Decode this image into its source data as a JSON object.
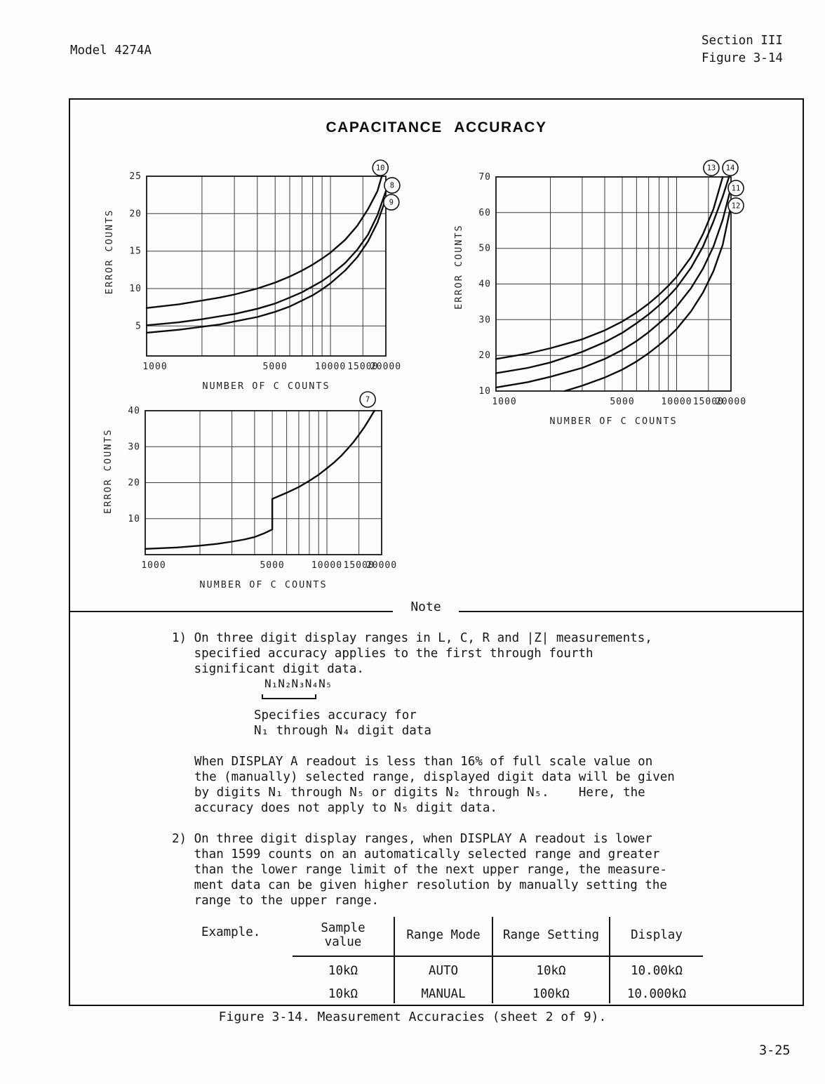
{
  "page": {
    "model": "Model 4274A",
    "section": "Section III",
    "figure_ref": "Figure 3-14",
    "title": "CAPACITANCE ACCURACY",
    "note_heading": "Note",
    "caption": "Figure 3-14.  Measurement Accuracies (sheet 2 of 9).",
    "page_number": "3-25"
  },
  "chart_data": [
    {
      "type": "line",
      "xscale": "log",
      "xlabel": "NUMBER OF C COUNTS",
      "ylabel": "ERROR COUNTS",
      "xlim": [
        1000,
        20000
      ],
      "ylim": [
        1,
        25
      ],
      "xticks": [
        1000,
        5000,
        10000,
        15000,
        20000
      ],
      "yticks": [
        5,
        10,
        15,
        20,
        25
      ],
      "xgrid": [
        1000,
        2000,
        3000,
        4000,
        5000,
        6000,
        7000,
        8000,
        9000,
        10000,
        15000,
        20000
      ],
      "grid": true,
      "series": [
        {
          "name": "10",
          "points": [
            [
              1000,
              7.4
            ],
            [
              1500,
              7.9
            ],
            [
              2000,
              8.4
            ],
            [
              2500,
              8.8
            ],
            [
              3000,
              9.2
            ],
            [
              4000,
              10.0
            ],
            [
              5000,
              10.8
            ],
            [
              6000,
              11.6
            ],
            [
              7000,
              12.4
            ],
            [
              8000,
              13.2
            ],
            [
              9000,
              14.0
            ],
            [
              10000,
              14.8
            ],
            [
              12000,
              16.5
            ],
            [
              14000,
              18.4
            ],
            [
              16000,
              20.6
            ],
            [
              18000,
              23.0
            ],
            [
              19000,
              25.0
            ]
          ]
        },
        {
          "name": "8",
          "points": [
            [
              1000,
              5.1
            ],
            [
              1500,
              5.5
            ],
            [
              2000,
              5.9
            ],
            [
              2500,
              6.3
            ],
            [
              3000,
              6.6
            ],
            [
              4000,
              7.3
            ],
            [
              5000,
              8.0
            ],
            [
              6000,
              8.8
            ],
            [
              7000,
              9.5
            ],
            [
              8000,
              10.3
            ],
            [
              9000,
              11.0
            ],
            [
              10000,
              11.8
            ],
            [
              12000,
              13.4
            ],
            [
              14000,
              15.2
            ],
            [
              16000,
              17.2
            ],
            [
              18000,
              19.8
            ],
            [
              20000,
              23.0
            ]
          ]
        },
        {
          "name": "9",
          "points": [
            [
              1000,
              4.1
            ],
            [
              1500,
              4.5
            ],
            [
              2000,
              4.9
            ],
            [
              2500,
              5.2
            ],
            [
              3000,
              5.6
            ],
            [
              4000,
              6.2
            ],
            [
              5000,
              6.9
            ],
            [
              6000,
              7.6
            ],
            [
              7000,
              8.4
            ],
            [
              8000,
              9.1
            ],
            [
              9000,
              9.9
            ],
            [
              10000,
              10.7
            ],
            [
              12000,
              12.4
            ],
            [
              14000,
              14.2
            ],
            [
              16000,
              16.3
            ],
            [
              18000,
              18.8
            ],
            [
              20000,
              22.0
            ]
          ]
        }
      ],
      "curve_labels": [
        {
          "text": "10",
          "fx": 0.977,
          "fy": -0.047
        },
        {
          "text": "8",
          "fx": 1.026,
          "fy": 0.051
        },
        {
          "text": "9",
          "fx": 1.023,
          "fy": 0.145
        }
      ]
    },
    {
      "type": "line",
      "xscale": "log",
      "xlabel": "NUMBER OF C COUNTS",
      "ylabel": "ERROR COUNTS",
      "xlim": [
        1000,
        20000
      ],
      "ylim": [
        10,
        70
      ],
      "xticks": [
        1000,
        5000,
        10000,
        15000,
        20000
      ],
      "yticks": [
        10,
        20,
        30,
        40,
        50,
        60,
        70
      ],
      "xgrid": [
        1000,
        2000,
        3000,
        4000,
        5000,
        6000,
        7000,
        8000,
        9000,
        10000,
        15000,
        20000
      ],
      "grid": true,
      "series": [
        {
          "name": "13",
          "points": [
            [
              1000,
              19.0
            ],
            [
              1500,
              20.5
            ],
            [
              2000,
              22.0
            ],
            [
              3000,
              24.5
            ],
            [
              4000,
              27.0
            ],
            [
              5000,
              29.5
            ],
            [
              6000,
              32.0
            ],
            [
              7000,
              34.5
            ],
            [
              8000,
              37.0
            ],
            [
              9000,
              39.5
            ],
            [
              10000,
              42.0
            ],
            [
              12000,
              47.5
            ],
            [
              14000,
              54.0
            ],
            [
              16000,
              61.0
            ],
            [
              18000,
              70.0
            ]
          ]
        },
        {
          "name": "14",
          "points": [
            [
              1000,
              15.0
            ],
            [
              1500,
              16.5
            ],
            [
              2000,
              18.0
            ],
            [
              3000,
              21.0
            ],
            [
              4000,
              23.7
            ],
            [
              5000,
              26.3
            ],
            [
              6000,
              29.0
            ],
            [
              7000,
              31.5
            ],
            [
              8000,
              34.0
            ],
            [
              9000,
              36.5
            ],
            [
              10000,
              39.0
            ],
            [
              12000,
              44.5
            ],
            [
              14000,
              50.5
            ],
            [
              16000,
              57.5
            ],
            [
              18000,
              64.5
            ],
            [
              19500,
              70.0
            ]
          ]
        },
        {
          "name": "11",
          "points": [
            [
              1000,
              11.0
            ],
            [
              1500,
              12.5
            ],
            [
              2000,
              14.0
            ],
            [
              3000,
              16.5
            ],
            [
              4000,
              19.0
            ],
            [
              5000,
              21.5
            ],
            [
              6000,
              24.0
            ],
            [
              7000,
              26.5
            ],
            [
              8000,
              29.0
            ],
            [
              9000,
              31.3
            ],
            [
              10000,
              33.7
            ],
            [
              12000,
              38.8
            ],
            [
              14000,
              44.3
            ],
            [
              16000,
              50.5
            ],
            [
              18000,
              58.0
            ],
            [
              20000,
              67.0
            ]
          ]
        },
        {
          "name": "12",
          "points": [
            [
              2400,
              10.0
            ],
            [
              3000,
              11.5
            ],
            [
              4000,
              13.8
            ],
            [
              5000,
              16.0
            ],
            [
              6000,
              18.3
            ],
            [
              7000,
              20.6
            ],
            [
              8000,
              22.9
            ],
            [
              9000,
              25.1
            ],
            [
              10000,
              27.4
            ],
            [
              12000,
              32.3
            ],
            [
              14000,
              37.6
            ],
            [
              16000,
              43.6
            ],
            [
              18000,
              51.0
            ],
            [
              20000,
              62.0
            ]
          ]
        }
      ],
      "curve_labels": [
        {
          "text": "13",
          "fx": 0.916,
          "fy": -0.042
        },
        {
          "text": "14",
          "fx": 0.997,
          "fy": -0.042
        },
        {
          "text": "11",
          "fx": 1.021,
          "fy": 0.052
        },
        {
          "text": "12",
          "fx": 1.021,
          "fy": 0.134
        }
      ]
    },
    {
      "type": "line",
      "xscale": "log",
      "xlabel": "NUMBER OF C COUNTS",
      "ylabel": "ERROR COUNTS",
      "xlim": [
        1000,
        20000
      ],
      "ylim": [
        0,
        40
      ],
      "xticks": [
        1000,
        5000,
        10000,
        15000,
        20000
      ],
      "yticks": [
        10,
        20,
        30,
        40
      ],
      "xgrid": [
        1000,
        2000,
        3000,
        4000,
        5000,
        6000,
        7000,
        8000,
        9000,
        10000,
        15000,
        20000
      ],
      "grid": true,
      "series": [
        {
          "name": "7",
          "points": [
            [
              1000,
              1.6
            ],
            [
              1500,
              2.0
            ],
            [
              2000,
              2.5
            ],
            [
              2500,
              3.0
            ],
            [
              3000,
              3.6
            ],
            [
              3500,
              4.2
            ],
            [
              4000,
              4.9
            ],
            [
              4500,
              5.9
            ],
            [
              5000,
              7.0
            ],
            [
              5000,
              15.5
            ],
            [
              6000,
              17.2
            ],
            [
              7000,
              18.8
            ],
            [
              8000,
              20.5
            ],
            [
              9000,
              22.2
            ],
            [
              10000,
              24.0
            ],
            [
              11000,
              25.7
            ],
            [
              12000,
              27.5
            ],
            [
              13000,
              29.4
            ],
            [
              14000,
              31.3
            ],
            [
              15000,
              33.3
            ],
            [
              16000,
              35.3
            ],
            [
              17000,
              37.4
            ],
            [
              18000,
              39.5
            ],
            [
              18300,
              40.0
            ]
          ]
        }
      ],
      "curve_labels": [
        {
          "text": "7",
          "fx": 0.941,
          "fy": -0.078
        }
      ]
    }
  ],
  "notes": {
    "item1_lines": [
      "1) On three digit display ranges in L, C, R and |Z| measurements,",
      "   specified accuracy applies to the first through fourth",
      "   significant digit data."
    ],
    "formula": "N₁N₂N₃N₄N₅",
    "formula_caption_lines": [
      "Specifies accuracy for",
      "N₁ through N₄ digit data"
    ],
    "para1_lines": [
      "When DISPLAY A readout is less than 16% of full scale value on",
      "the (manually) selected range, displayed digit data will be given",
      "by digits N₁ through N₅ or digits N₂ through N₅.    Here, the",
      "accuracy does not apply to N₅ digit data."
    ],
    "item2_lines": [
      "2) On three digit display ranges, when DISPLAY A readout is lower",
      "   than 1599 counts on an automatically selected range and greater",
      "   than the lower range limit of the next upper range, the measure-",
      "   ment data can be given higher resolution by manually setting the",
      "   range to the upper range."
    ]
  },
  "example_table": {
    "label": "Example.",
    "headers": [
      "Sample value",
      "Range Mode",
      "Range Setting",
      "Display"
    ],
    "rows": [
      [
        "10kΩ",
        "AUTO",
        "10kΩ",
        "10.00kΩ"
      ],
      [
        "10kΩ",
        "MANUAL",
        "100kΩ",
        "10.000kΩ"
      ]
    ]
  }
}
